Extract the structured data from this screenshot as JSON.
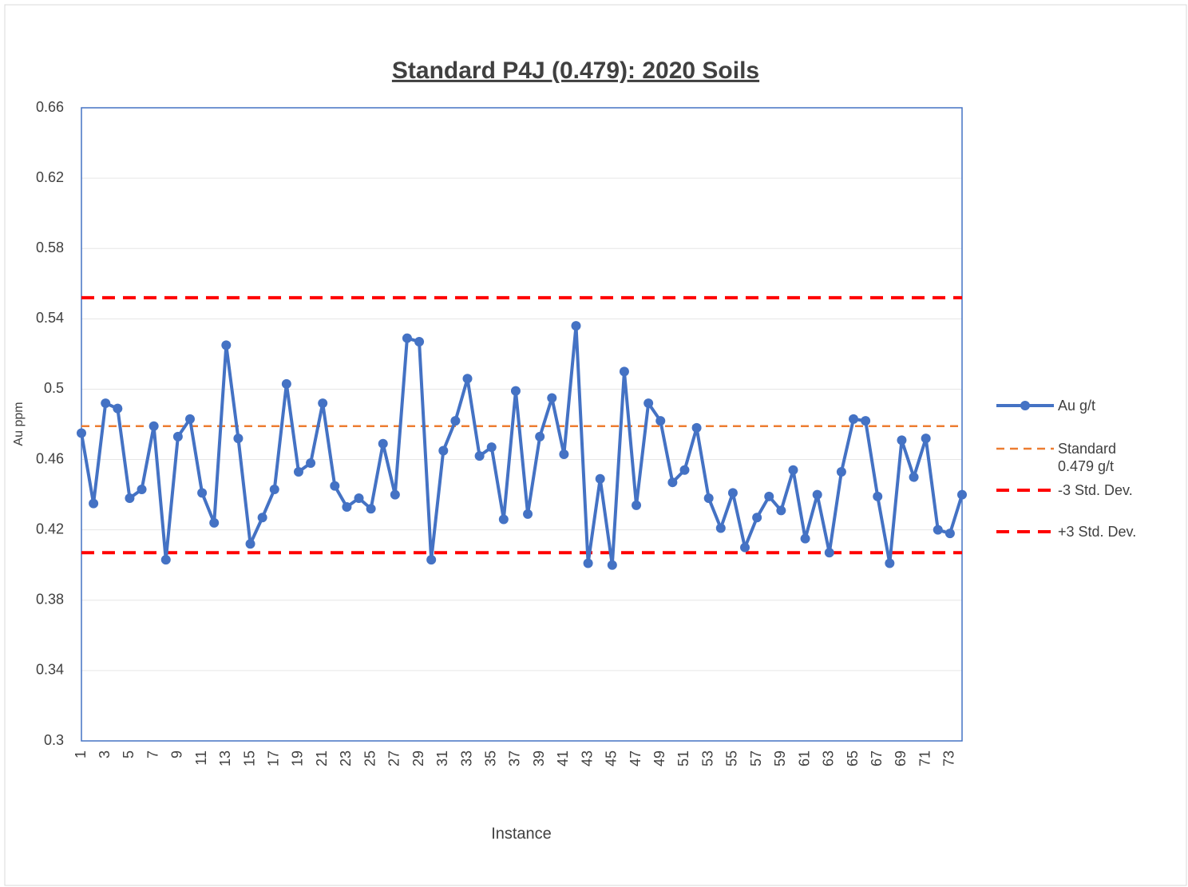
{
  "chart_data": {
    "type": "line",
    "title": "Standard P4J (0.479): 2020 Soils",
    "x_label": "Instance",
    "y_label": "Au ppm",
    "categories": [
      1,
      null,
      3,
      null,
      5,
      null,
      7,
      null,
      9,
      null,
      11,
      null,
      13,
      null,
      15,
      null,
      17,
      null,
      19,
      null,
      21,
      null,
      23,
      null,
      25,
      null,
      27,
      null,
      29,
      null,
      31,
      null,
      33,
      null,
      35,
      null,
      37,
      null,
      39,
      null,
      41,
      null,
      43,
      null,
      45,
      null,
      47,
      null,
      49,
      null,
      51,
      null,
      53,
      null,
      55,
      null,
      57,
      null,
      59,
      null,
      61,
      null,
      63,
      null,
      65,
      null,
      67,
      null,
      69,
      null,
      71,
      null,
      73,
      null
    ],
    "series": [
      {
        "name": "Au g/t",
        "color": "#4472c4",
        "values": [
          0.475,
          0.435,
          0.492,
          0.489,
          0.438,
          0.443,
          0.479,
          0.403,
          0.473,
          0.483,
          0.441,
          0.424,
          0.525,
          0.472,
          0.412,
          0.427,
          0.443,
          0.503,
          0.453,
          0.458,
          0.492,
          0.445,
          0.433,
          0.438,
          0.432,
          0.469,
          0.44,
          0.529,
          0.527,
          0.403,
          0.465,
          0.482,
          0.506,
          0.462,
          0.467,
          0.426,
          0.499,
          0.429,
          0.473,
          0.495,
          0.463,
          0.536,
          0.401,
          0.449,
          0.4,
          0.51,
          0.434,
          0.492,
          0.482,
          0.447,
          0.454,
          0.478,
          0.438,
          0.421,
          0.441,
          0.41,
          0.427,
          0.439,
          0.431,
          0.454,
          0.415,
          0.44,
          0.407,
          0.453,
          0.483,
          0.482,
          0.439,
          0.401,
          0.471,
          0.45,
          0.472,
          0.42,
          0.418,
          0.44
        ]
      }
    ],
    "reference_lines": [
      {
        "name": "Standard 0.479 g/t",
        "color": "#ed7d31",
        "value": 0.479
      },
      {
        "name": "-3 Std. Dev.",
        "color": "#ff0000",
        "value": 0.407
      },
      {
        "name": "+3 Std. Dev.",
        "color": "#ff0000",
        "value": 0.552
      }
    ],
    "ylim": [
      0.3,
      0.66
    ],
    "yticks": [
      0.3,
      0.34,
      0.38,
      0.42,
      0.46,
      0.5,
      0.54,
      0.58,
      0.62,
      0.66
    ],
    "grid": true,
    "legend": "right"
  }
}
